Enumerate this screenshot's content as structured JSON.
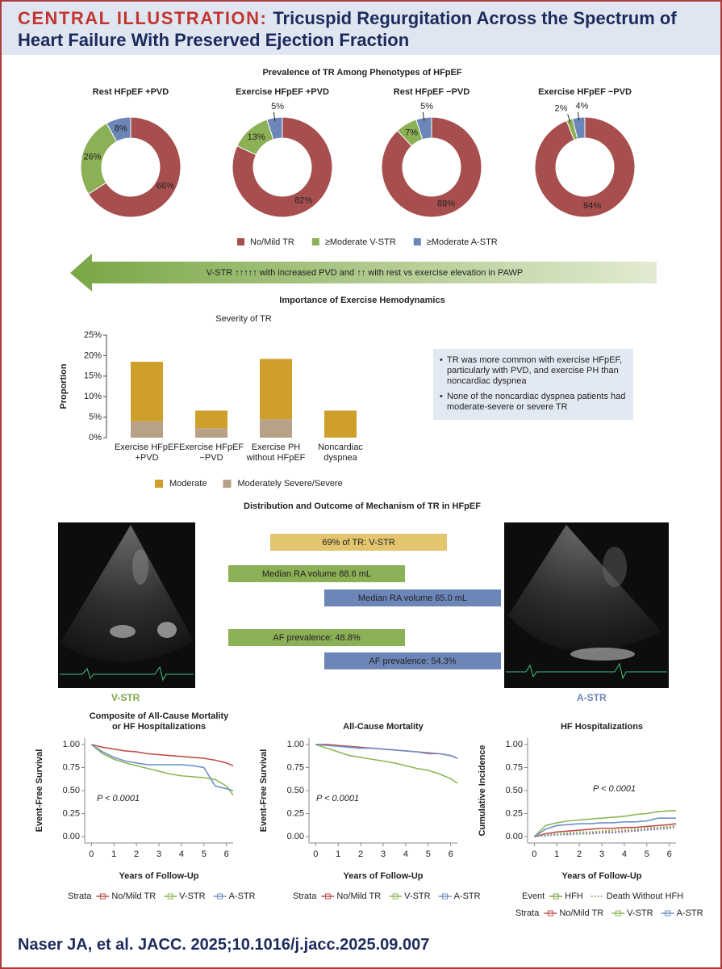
{
  "header": {
    "label": "CENTRAL ILLUSTRATION:",
    "title": "Tricuspid Regurgitation Across the Spectrum of Heart Failure With Preserved Ejection Fraction"
  },
  "arrow_text": "V-STR ↑↑↑↑↑ with increased PVD and ↑↑ with rest vs exercise elevation in PAWP",
  "hemodynamics_notes": [
    "TR was more common with exercise HFpEF, particularly with PVD, and exercise PH than noncardiac dyspnea",
    "None of the noncardiac dyspnea patients had moderate-severe or severe TR"
  ],
  "mechanism": {
    "title": "Distribution and Outcome of Mechanism of TR in HFpEF",
    "left_label": "V-STR",
    "right_label": "A-STR",
    "bars": [
      {
        "text": "69% of TR: V-STR",
        "color": "#e3c46f"
      },
      {
        "text": "Median RA volume 88.6 mL",
        "color": "#8bb056"
      },
      {
        "text": "Median RA volume 65.0 mL",
        "color": "#6c86b8"
      },
      {
        "text": "AF prevalence: 48.8%",
        "color": "#8bb056"
      },
      {
        "text": "AF prevalence: 54.3%",
        "color": "#6c86b8"
      }
    ]
  },
  "citation": "Naser JA, et al. JACC. 2025;10.1016/j.jacc.2025.09.007",
  "chart_data": [
    {
      "type": "donut",
      "title": "Prevalence of TR Among Phenotypes of HFpEF",
      "categories": [
        "No/Mild TR",
        "≥Moderate V-STR",
        "≥Moderate A-STR"
      ],
      "colors": [
        "#a64f4e",
        "#8bb056",
        "#6c86b8"
      ],
      "series": [
        {
          "name": "Rest HFpEF +PVD",
          "values": [
            66,
            26,
            8
          ],
          "value_labels": [
            "66%",
            "26%",
            "8%"
          ]
        },
        {
          "name": "Exercise HFpEF +PVD",
          "values": [
            82,
            13,
            5
          ],
          "value_labels": [
            "82%",
            "13%",
            "5%"
          ]
        },
        {
          "name": "Rest HFpEF −PVD",
          "values": [
            88,
            7,
            5
          ],
          "value_labels": [
            "88%",
            "7%",
            "5%"
          ]
        },
        {
          "name": "Exercise HFpEF −PVD",
          "values": [
            94,
            2,
            4
          ],
          "value_labels": [
            "94%",
            "2%",
            "4%"
          ]
        }
      ]
    },
    {
      "type": "bar",
      "stacked": true,
      "section_title": "Importance of Exercise Hemodynamics",
      "title": "Severity of TR",
      "ylabel": "Proportion",
      "categories": [
        "Exercise HFpEF\n+PVD",
        "Exercise HFpEF\n−PVD",
        "Exercise PH\nwithout HFpEF",
        "Noncardiac\ndyspnea"
      ],
      "series": [
        {
          "name": "Moderate",
          "color": "#cf9f2b",
          "values": [
            14.5,
            4.3,
            14.7,
            6.6
          ]
        },
        {
          "name": "Moderately Severe/Severe",
          "color": "#b7a187",
          "values": [
            4,
            2.3,
            4.5,
            0
          ]
        }
      ],
      "ylim": [
        0,
        25
      ],
      "yticks": [
        {
          "value": 0,
          "label": "0%"
        },
        {
          "value": 5,
          "label": "5%"
        },
        {
          "value": 10,
          "label": "10%"
        },
        {
          "value": 15,
          "label": "15%"
        },
        {
          "value": 20,
          "label": "20%"
        },
        {
          "value": 25,
          "label": "25%"
        }
      ]
    },
    {
      "type": "line",
      "title": "Composite of All-Cause Mortality\nor HF Hospitalizations",
      "xlabel": "Years of Follow-Up",
      "ylabel": "Event-Free Survival",
      "annotation": "P < 0.0001",
      "legend_title": "Strata",
      "x": [
        0,
        0.5,
        1,
        1.5,
        2,
        2.5,
        3,
        3.5,
        4,
        4.5,
        5,
        5.5,
        6,
        6.3
      ],
      "xlim": [
        -0.3,
        6.3
      ],
      "xticks": [
        0,
        1,
        2,
        3,
        4,
        5,
        6
      ],
      "ylim": [
        -0.07,
        1.07
      ],
      "yticks": [
        {
          "value": 0,
          "label": "0.00"
        },
        0.25,
        {
          "value": 0.5,
          "label": "0.50"
        },
        0.75,
        {
          "value": 1,
          "label": "1.00"
        }
      ],
      "series": [
        {
          "name": "No/Mild TR",
          "color": "#c0504d",
          "values": [
            1,
            0.97,
            0.95,
            0.93,
            0.92,
            0.9,
            0.89,
            0.88,
            0.87,
            0.86,
            0.85,
            0.83,
            0.8,
            0.77
          ]
        },
        {
          "name": "V-STR",
          "color": "#8cb858",
          "values": [
            1,
            0.9,
            0.84,
            0.8,
            0.77,
            0.74,
            0.71,
            0.68,
            0.66,
            0.65,
            0.64,
            0.62,
            0.55,
            0.45
          ]
        },
        {
          "name": "A-STR",
          "color": "#6f90c8",
          "values": [
            1,
            0.92,
            0.86,
            0.82,
            0.8,
            0.78,
            0.78,
            0.78,
            0.78,
            0.77,
            0.75,
            0.55,
            0.52,
            0.5
          ]
        }
      ]
    },
    {
      "type": "line",
      "title": "All-Cause Mortality",
      "xlabel": "Years of Follow-Up",
      "ylabel": "Event-Free Survival",
      "annotation": "P < 0.0001",
      "legend_title": "Strata",
      "x": [
        0,
        0.5,
        1,
        1.5,
        2,
        2.5,
        3,
        3.5,
        4,
        4.5,
        5,
        5.5,
        6,
        6.3
      ],
      "xlim": [
        -0.3,
        6.3
      ],
      "xticks": [
        0,
        1,
        2,
        3,
        4,
        5,
        6
      ],
      "ylim": [
        -0.07,
        1.07
      ],
      "yticks": [
        {
          "value": 0,
          "label": "0.00"
        },
        0.25,
        {
          "value": 0.5,
          "label": "0.50"
        },
        0.75,
        {
          "value": 1,
          "label": "1.00"
        }
      ],
      "series": [
        {
          "name": "No/Mild TR",
          "color": "#c0504d",
          "values": [
            1,
            1,
            0.99,
            0.98,
            0.97,
            0.96,
            0.95,
            0.94,
            0.93,
            0.92,
            0.91,
            0.9,
            0.88,
            0.85
          ]
        },
        {
          "name": "V-STR",
          "color": "#8cb858",
          "values": [
            1,
            0.96,
            0.92,
            0.88,
            0.86,
            0.84,
            0.82,
            0.8,
            0.77,
            0.74,
            0.72,
            0.68,
            0.63,
            0.58
          ]
        },
        {
          "name": "A-STR",
          "color": "#6f90c8",
          "values": [
            1,
            0.99,
            0.98,
            0.97,
            0.96,
            0.96,
            0.95,
            0.94,
            0.93,
            0.92,
            0.9,
            0.9,
            0.88,
            0.85
          ]
        }
      ]
    },
    {
      "type": "line",
      "title": "HF Hospitalizations",
      "xlabel": "Years of Follow-Up",
      "ylabel": "Cumulative Incidence",
      "annotation": "P < 0.0001",
      "event_title": "Event",
      "events": [
        "HFH",
        "Death Without HFH"
      ],
      "event_styles": [
        "solid",
        "dotted"
      ],
      "legend_title": "Strata",
      "strata": [
        "No/Mild TR",
        "V-STR",
        "A-STR"
      ],
      "strata_colors": [
        "#c0504d",
        "#8cb858",
        "#6f90c8"
      ],
      "x": [
        0,
        0.5,
        1,
        1.5,
        2,
        2.5,
        3,
        3.5,
        4,
        4.5,
        5,
        5.5,
        6,
        6.3
      ],
      "xlim": [
        -0.3,
        6.3
      ],
      "xticks": [
        0,
        1,
        2,
        3,
        4,
        5,
        6
      ],
      "ylim": [
        -0.07,
        1.07
      ],
      "yticks": [
        {
          "value": 0,
          "label": "0.00"
        },
        0.25,
        {
          "value": 0.5,
          "label": "0.50"
        },
        0.75,
        {
          "value": 1,
          "label": "1.00"
        }
      ],
      "series": [
        {
          "color": "#c0504d",
          "linestyle": "solid",
          "values": [
            0,
            0.03,
            0.05,
            0.06,
            0.07,
            0.08,
            0.09,
            0.09,
            0.1,
            0.1,
            0.11,
            0.12,
            0.13,
            0.14
          ]
        },
        {
          "color": "#8cb858",
          "linestyle": "solid",
          "values": [
            0,
            0.12,
            0.15,
            0.17,
            0.18,
            0.19,
            0.2,
            0.21,
            0.22,
            0.24,
            0.25,
            0.27,
            0.28,
            0.28
          ]
        },
        {
          "color": "#6f90c8",
          "linestyle": "solid",
          "values": [
            0,
            0.08,
            0.12,
            0.13,
            0.14,
            0.14,
            0.15,
            0.15,
            0.16,
            0.16,
            0.17,
            0.2,
            0.2,
            0.2
          ]
        },
        {
          "color": "#c0504d",
          "linestyle": "dotted",
          "values": [
            0,
            0.01,
            0.02,
            0.03,
            0.03,
            0.04,
            0.05,
            0.05,
            0.06,
            0.07,
            0.08,
            0.09,
            0.1,
            0.12
          ]
        },
        {
          "color": "#8cb858",
          "linestyle": "dotted",
          "values": [
            0,
            0.02,
            0.03,
            0.04,
            0.05,
            0.05,
            0.06,
            0.07,
            0.08,
            0.09,
            0.1,
            0.1,
            0.11,
            0.12
          ]
        },
        {
          "color": "#6f90c8",
          "linestyle": "dotted",
          "values": [
            0,
            0.01,
            0.02,
            0.02,
            0.03,
            0.03,
            0.04,
            0.04,
            0.05,
            0.06,
            0.07,
            0.08,
            0.09,
            0.1
          ]
        }
      ]
    }
  ]
}
